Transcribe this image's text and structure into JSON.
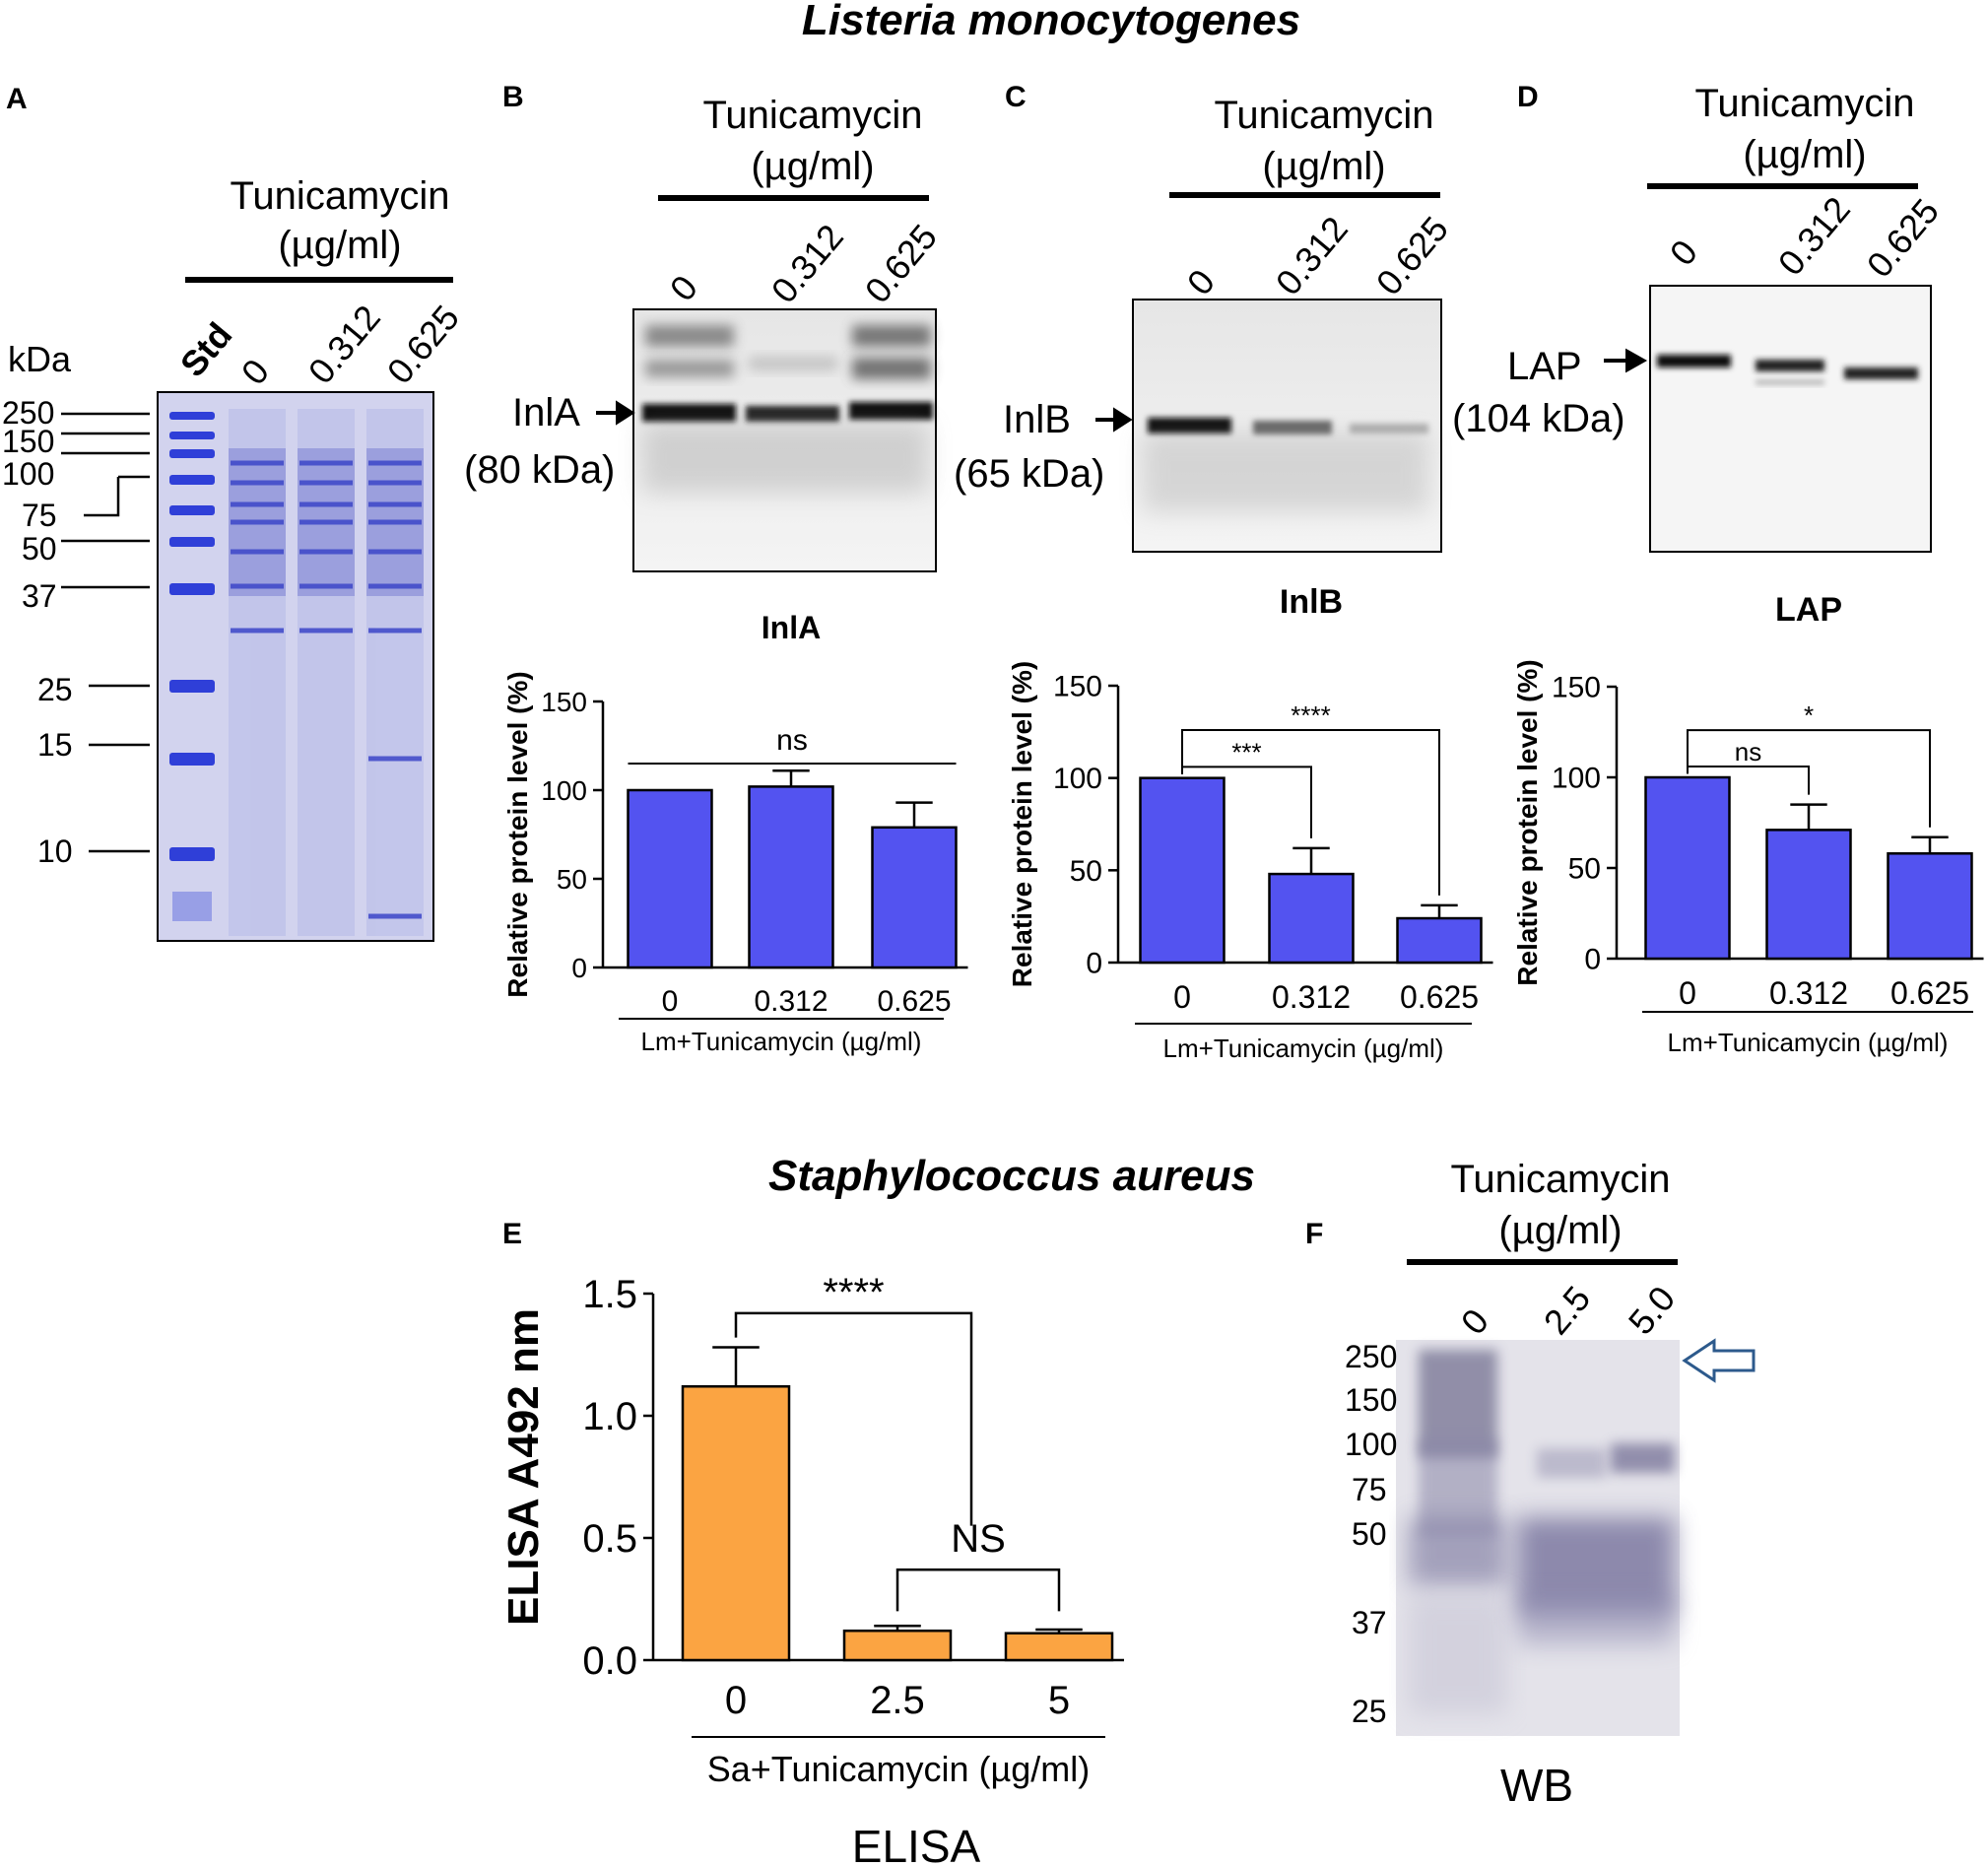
{
  "figure": {
    "title_top": "Listeria monocytogenes",
    "title_bottom": "Staphylococcus aureus"
  },
  "colors": {
    "blue_bar": "#5353f0",
    "orange_bar": "#fba442",
    "gel_blue": "#2f3fd8"
  },
  "panels": {
    "A": {
      "label": "A",
      "header_line1": "Tunicamycin",
      "header_line2": "(µg/ml)",
      "kda_label": "kDa",
      "lanes": [
        "Std",
        "0",
        "0.312",
        "0.625"
      ],
      "markers": [
        "250",
        "150",
        "100",
        "75",
        "50",
        "37",
        "25",
        "15",
        "10"
      ]
    },
    "B": {
      "label": "B",
      "header_line1": "Tunicamycin",
      "header_line2": "(µg/ml)",
      "lanes": [
        "0",
        "0.312",
        "0.625"
      ],
      "band_name": "InlA",
      "band_size": "(80 kDa)"
    },
    "C": {
      "label": "C",
      "header_line1": "Tunicamycin",
      "header_line2": "(µg/ml)",
      "lanes": [
        "0",
        "0.312",
        "0.625"
      ],
      "band_name": "InlB",
      "band_size": "(65 kDa)"
    },
    "D": {
      "label": "D",
      "header_line1": "Tunicamycin",
      "header_line2": "(µg/ml)",
      "lanes": [
        "0",
        "0.312",
        "0.625"
      ],
      "band_name": "LAP",
      "band_size": "(104 kDa)"
    },
    "E": {
      "label": "E",
      "caption": "ELISA"
    },
    "F": {
      "label": "F",
      "header_line1": "Tunicamycin",
      "header_line2": "(µg/ml)",
      "lanes": [
        "0",
        "2.5",
        "5.0"
      ],
      "markers": [
        "250",
        "150",
        "100",
        "75",
        "50",
        "37",
        "25"
      ],
      "caption": "WB"
    }
  },
  "chart_data": [
    {
      "id": "B",
      "type": "bar",
      "title": "InlA",
      "categories": [
        "0",
        "0.312",
        "0.625"
      ],
      "values": [
        100,
        102,
        79
      ],
      "errors": [
        0,
        9,
        14
      ],
      "ylabel": "Relative protein level (%)",
      "xlabel": "Lm+Tunicamycin (µg/ml)",
      "ylim": [
        0,
        150
      ],
      "yticks": [
        0,
        50,
        100,
        150
      ],
      "significance": [
        {
          "from": 0,
          "to": 2,
          "label": "ns"
        }
      ]
    },
    {
      "id": "C",
      "type": "bar",
      "title": "InlB",
      "categories": [
        "0",
        "0.312",
        "0.625"
      ],
      "values": [
        100,
        48,
        24
      ],
      "errors": [
        0,
        14,
        7
      ],
      "ylabel": "Relative protein level (%)",
      "xlabel": "Lm+Tunicamycin (µg/ml)",
      "ylim": [
        0,
        150
      ],
      "yticks": [
        0,
        50,
        100,
        150
      ],
      "significance": [
        {
          "from": 0,
          "to": 1,
          "label": "***"
        },
        {
          "from": 0,
          "to": 2,
          "label": "****"
        }
      ]
    },
    {
      "id": "D",
      "type": "bar",
      "title": "LAP",
      "categories": [
        "0",
        "0.312",
        "0.625"
      ],
      "values": [
        100,
        71,
        58
      ],
      "errors": [
        0,
        14,
        9
      ],
      "ylabel": "Relative protein level (%)",
      "xlabel": "Lm+Tunicamycin (µg/ml)",
      "ylim": [
        0,
        150
      ],
      "yticks": [
        0,
        50,
        100,
        150
      ],
      "significance": [
        {
          "from": 0,
          "to": 1,
          "label": "ns"
        },
        {
          "from": 0,
          "to": 2,
          "label": "*"
        }
      ]
    },
    {
      "id": "E",
      "type": "bar",
      "title": "",
      "categories": [
        "0",
        "2.5",
        "5"
      ],
      "values": [
        1.12,
        0.12,
        0.11
      ],
      "errors": [
        0.16,
        0.02,
        0.015
      ],
      "ylabel": "ELISA A492 nm",
      "xlabel": "Sa+Tunicamycin (µg/ml)",
      "ylim": [
        0,
        1.5
      ],
      "yticks": [
        0.0,
        0.5,
        1.0,
        1.5
      ],
      "significance": [
        {
          "from": 0,
          "to": 1,
          "label": "****"
        },
        {
          "from": 1,
          "to": 2,
          "label": "NS"
        }
      ]
    }
  ]
}
